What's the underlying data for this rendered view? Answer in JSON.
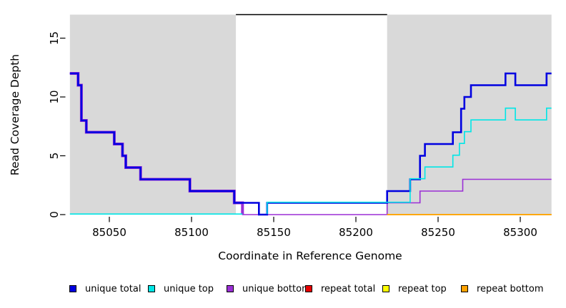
{
  "figure": {
    "title": "",
    "xlabel": "Coordinate in Reference Genome",
    "ylabel": "Read Coverage Depth"
  },
  "chart_data": {
    "type": "line",
    "subtype": "step-after",
    "title": "",
    "xlabel": "Coordinate in Reference Genome",
    "ylabel": "Read Coverage Depth",
    "xlim": [
      85026,
      85319
    ],
    "ylim": [
      0,
      17
    ],
    "xticks": [
      85050,
      85100,
      85150,
      85200,
      85250,
      85300
    ],
    "yticks": [
      0,
      5,
      10,
      15
    ],
    "grid": false,
    "legend_position": "bottom",
    "background_color": "#ffffff",
    "shade_color": "#d9d9d9",
    "shaded_regions": [
      {
        "name": "left-repeat-shade",
        "x0": 85026,
        "x1": 85127
      },
      {
        "name": "right-repeat-shade",
        "x0": 85219,
        "x1": 85319
      }
    ],
    "gap_marker": {
      "x0": 85127,
      "x1": 85219,
      "y": 17,
      "color": "#000000"
    },
    "series": [
      {
        "name": "unique bottom",
        "color": "#9b2fd6",
        "segments": [
          {
            "width": 4,
            "points": [
              [
                85026,
                12
              ],
              [
                85031,
                11
              ],
              [
                85033,
                8
              ],
              [
                85036,
                7
              ],
              [
                85053,
                6
              ],
              [
                85058,
                5
              ],
              [
                85060,
                4
              ],
              [
                85069,
                3
              ],
              [
                85099,
                2
              ],
              [
                85126,
                1
              ],
              [
                85131,
                0
              ]
            ]
          },
          {
            "width": 1.6,
            "points": [
              [
                85026,
                12
              ],
              [
                85031,
                11
              ],
              [
                85033,
                8
              ],
              [
                85036,
                7
              ],
              [
                85053,
                6
              ],
              [
                85058,
                5
              ],
              [
                85060,
                4
              ],
              [
                85069,
                3
              ],
              [
                85099,
                2
              ],
              [
                85126,
                1
              ],
              [
                85131,
                0
              ],
              [
                85219,
                1
              ],
              [
                85239,
                2
              ],
              [
                85265,
                3
              ],
              [
                85319,
                3
              ]
            ]
          }
        ]
      },
      {
        "name": "unique total",
        "color": "#0000e0",
        "segments": [
          {
            "width": 2.6,
            "points": [
              [
                85026,
                12
              ],
              [
                85031,
                11
              ],
              [
                85033,
                8
              ],
              [
                85036,
                7
              ],
              [
                85053,
                6
              ],
              [
                85058,
                5
              ],
              [
                85060,
                4
              ],
              [
                85069,
                3
              ],
              [
                85099,
                2
              ],
              [
                85126,
                1
              ],
              [
                85141,
                0
              ],
              [
                85146,
                1
              ],
              [
                85219,
                2
              ],
              [
                85233,
                3
              ],
              [
                85239,
                5
              ],
              [
                85242,
                6
              ],
              [
                85259,
                7
              ],
              [
                85264,
                9
              ],
              [
                85266,
                10
              ],
              [
                85270,
                11
              ],
              [
                85291,
                12
              ],
              [
                85297,
                11
              ],
              [
                85316,
                12
              ],
              [
                85319,
                12
              ]
            ]
          }
        ]
      },
      {
        "name": "unique top",
        "color": "#00e6e6",
        "yoffset": -0.8,
        "segments": [
          {
            "width": 1.6,
            "points": [
              [
                85026,
                0
              ],
              [
                85131,
                0
              ]
            ]
          },
          {
            "width": 1.6,
            "points": [
              [
                85146,
                0
              ],
              [
                85146,
                1
              ],
              [
                85233,
                3
              ],
              [
                85242,
                4
              ],
              [
                85259,
                5
              ],
              [
                85263,
                6
              ],
              [
                85266,
                7
              ],
              [
                85270,
                8
              ],
              [
                85291,
                9
              ],
              [
                85297,
                8
              ],
              [
                85316,
                9
              ],
              [
                85319,
                9
              ]
            ]
          }
        ]
      },
      {
        "name": "repeat total",
        "color": "#e60000",
        "segments": [
          {
            "width": 1.6,
            "points": [
              [
                85219,
                0
              ],
              [
                85319,
                0
              ]
            ]
          }
        ]
      },
      {
        "name": "repeat top",
        "color": "#ffff00",
        "segments": [
          {
            "width": 1.6,
            "points": [
              [
                85219,
                0
              ],
              [
                85319,
                0
              ]
            ]
          }
        ]
      },
      {
        "name": "repeat bottom",
        "color": "#ffa200",
        "segments": [
          {
            "width": 1.6,
            "points": [
              [
                85219,
                0
              ],
              [
                85319,
                0
              ]
            ]
          }
        ]
      }
    ],
    "legend": [
      {
        "label": "unique total",
        "color": "#0000e0"
      },
      {
        "label": "unique top",
        "color": "#00e6e6"
      },
      {
        "label": "unique bottom",
        "color": "#9b2fd6"
      },
      {
        "label": "repeat total",
        "color": "#e60000"
      },
      {
        "label": "repeat top",
        "color": "#ffff00"
      },
      {
        "label": "repeat bottom",
        "color": "#ffa200"
      }
    ]
  }
}
